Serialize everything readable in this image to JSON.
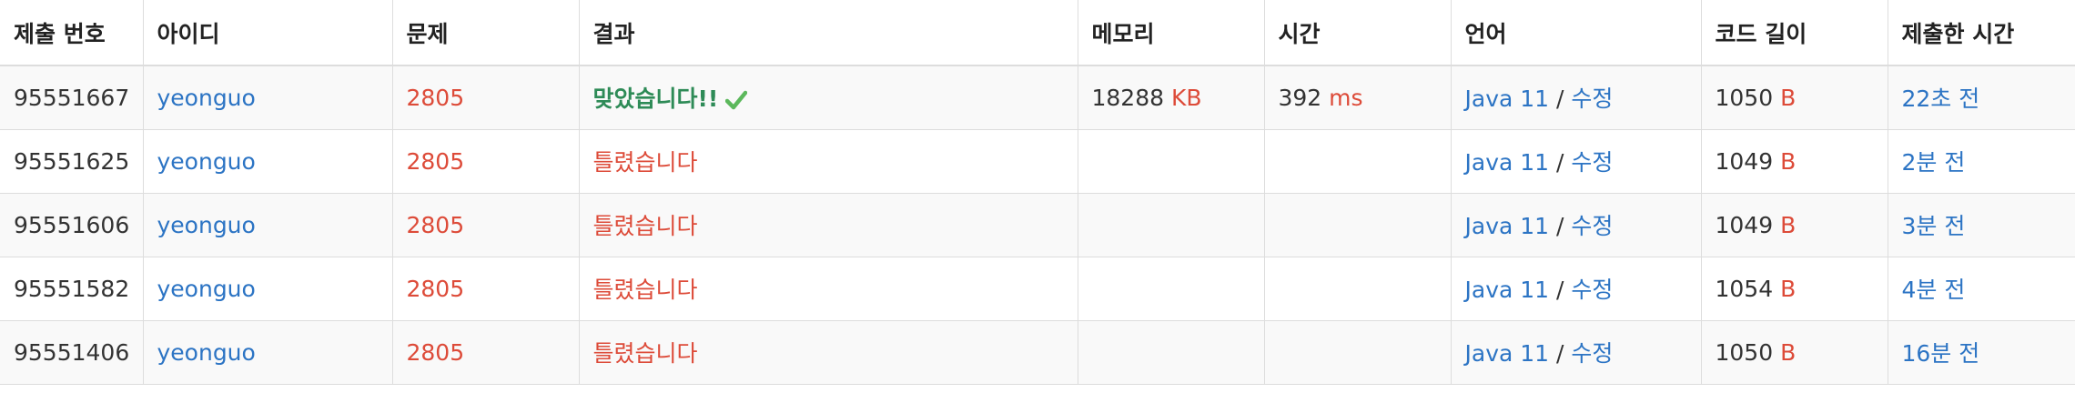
{
  "headers": [
    "제출 번호",
    "아이디",
    "문제",
    "결과",
    "메모리",
    "시간",
    "언어",
    "코드 길이",
    "제출한 시간"
  ],
  "rows": [
    {
      "id": "95551667",
      "user": "yeonguo",
      "problem": "2805",
      "result": "맞았습니다!!",
      "accepted": true,
      "memory": "18288",
      "memory_unit": "KB",
      "time": "392",
      "time_unit": "ms",
      "lang": "Java 11",
      "lang_sep": " / ",
      "edit": "수정",
      "code_length": "1050",
      "code_unit": "B",
      "submitted": "22초 전"
    },
    {
      "id": "95551625",
      "user": "yeonguo",
      "problem": "2805",
      "result": "틀렸습니다",
      "accepted": false,
      "memory": "",
      "memory_unit": "",
      "time": "",
      "time_unit": "",
      "lang": "Java 11",
      "lang_sep": " / ",
      "edit": "수정",
      "code_length": "1049",
      "code_unit": "B",
      "submitted": "2분 전"
    },
    {
      "id": "95551606",
      "user": "yeonguo",
      "problem": "2805",
      "result": "틀렸습니다",
      "accepted": false,
      "memory": "",
      "memory_unit": "",
      "time": "",
      "time_unit": "",
      "lang": "Java 11",
      "lang_sep": " / ",
      "edit": "수정",
      "code_length": "1049",
      "code_unit": "B",
      "submitted": "3분 전"
    },
    {
      "id": "95551582",
      "user": "yeonguo",
      "problem": "2805",
      "result": "틀렸습니다",
      "accepted": false,
      "memory": "",
      "memory_unit": "",
      "time": "",
      "time_unit": "",
      "lang": "Java 11",
      "lang_sep": " / ",
      "edit": "수정",
      "code_length": "1054",
      "code_unit": "B",
      "submitted": "4분 전"
    },
    {
      "id": "95551406",
      "user": "yeonguo",
      "problem": "2805",
      "result": "틀렸습니다",
      "accepted": false,
      "memory": "",
      "memory_unit": "",
      "time": "",
      "time_unit": "",
      "lang": "Java 11",
      "lang_sep": " / ",
      "edit": "수정",
      "code_length": "1050",
      "code_unit": "B",
      "submitted": "16분 전"
    }
  ],
  "colors": {
    "link": "#2c74c4",
    "wrong": "#dd4b39",
    "accepted": "#2e8b57",
    "check": "#5cb85c",
    "unit": "#dd4b39"
  }
}
